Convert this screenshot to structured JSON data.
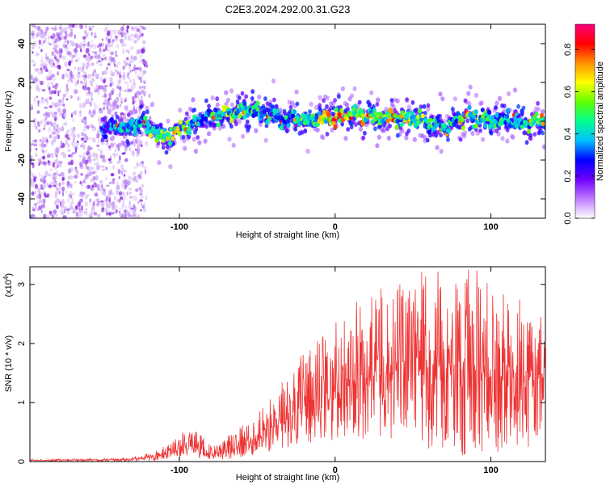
{
  "title": "C2E3.2024.292.00.31.G23",
  "chart_data": [
    {
      "type": "heatmap",
      "title": "C2E3.2024.292.00.31.G23",
      "xlabel": "Height of straight line (km)",
      "ylabel": "Frequency (Hz)",
      "xlim": [
        -196,
        135
      ],
      "ylim": [
        -50,
        50
      ],
      "xticks": [
        -100,
        0,
        100
      ],
      "yticks": [
        -40,
        -20,
        0,
        20,
        40
      ],
      "colorbar": {
        "label": "Normalized spectral amplitude",
        "range": [
          0.0,
          0.92
        ],
        "ticks": [
          0.0,
          0.2,
          0.4,
          0.6,
          0.8
        ],
        "colormap": [
          "#ffffff",
          "#c07bff",
          "#7000ff",
          "#0000ff",
          "#00c0ff",
          "#00ff90",
          "#60ff00",
          "#ffff00",
          "#ff9000",
          "#ff0000",
          "#ff0080"
        ]
      },
      "ridge": {
        "x": [
          -196,
          -185,
          -175,
          -165,
          -155,
          -145,
          -135,
          -125,
          -115,
          -108,
          -100,
          -92,
          -85,
          -78,
          -70,
          -62,
          -55,
          -48,
          -40,
          -32,
          -25,
          -18,
          -10,
          -2,
          5,
          12,
          20,
          28,
          35,
          42,
          50,
          58,
          65,
          70,
          78,
          85,
          92,
          100,
          108,
          115,
          122,
          128,
          135
        ],
        "freq": [
          -2,
          -6,
          -10,
          -4,
          -5,
          -3,
          -4,
          0,
          -6,
          -8,
          -4,
          -2,
          2,
          3,
          4,
          5,
          6,
          4,
          3,
          1,
          2,
          0,
          1,
          2,
          3,
          4,
          2,
          3,
          2,
          1,
          2,
          0,
          -2,
          -4,
          0,
          2,
          1,
          0,
          1,
          0,
          -1,
          0,
          0
        ],
        "amplitude": [
          0.15,
          0.15,
          0.2,
          0.2,
          0.25,
          0.3,
          0.35,
          0.4,
          0.5,
          0.55,
          0.5,
          0.45,
          0.35,
          0.4,
          0.5,
          0.45,
          0.4,
          0.4,
          0.35,
          0.35,
          0.4,
          0.45,
          0.5,
          0.6,
          0.65,
          0.6,
          0.55,
          0.5,
          0.55,
          0.45,
          0.5,
          0.45,
          0.4,
          0.35,
          0.4,
          0.5,
          0.45,
          0.4,
          0.35,
          0.3,
          0.4,
          0.5,
          0.45
        ]
      },
      "noise_region_x": [
        -196,
        -122
      ]
    },
    {
      "type": "line",
      "xlabel": "Height of straight line (km)",
      "ylabel": "SNR (10 * v/v)",
      "scale_note": "(x10",
      "scale_exp": "4",
      "scale_close": ")",
      "xlim": [
        -196,
        135
      ],
      "ylim": [
        0,
        3.3
      ],
      "xticks": [
        -100,
        0,
        100
      ],
      "yticks": [
        0,
        1,
        2,
        3
      ],
      "color": "#ee3333",
      "envelope": {
        "x": [
          -196,
          -140,
          -125,
          -110,
          -100,
          -95,
          -88,
          -80,
          -75,
          -65,
          -55,
          -45,
          -35,
          -25,
          -15,
          -5,
          5,
          15,
          25,
          35,
          45,
          55,
          65,
          75,
          85,
          95,
          105,
          115,
          125,
          135
        ],
        "mean": [
          0.02,
          0.03,
          0.05,
          0.12,
          0.2,
          0.28,
          0.25,
          0.12,
          0.15,
          0.22,
          0.35,
          0.5,
          0.65,
          0.8,
          1.0,
          1.15,
          1.3,
          1.4,
          1.45,
          1.5,
          1.5,
          1.55,
          1.55,
          1.6,
          1.55,
          1.5,
          1.45,
          1.4,
          1.35,
          1.45
        ],
        "max": [
          0.04,
          0.06,
          0.1,
          0.25,
          0.45,
          0.62,
          0.5,
          0.3,
          0.35,
          0.5,
          0.75,
          1.05,
          1.4,
          1.7,
          2.0,
          2.2,
          2.55,
          2.75,
          2.9,
          3.0,
          3.1,
          3.25,
          3.3,
          3.15,
          3.3,
          3.2,
          3.0,
          2.9,
          2.6,
          2.5
        ],
        "min": [
          0.0,
          0.0,
          0.0,
          0.02,
          0.05,
          0.08,
          0.06,
          0.02,
          0.03,
          0.05,
          0.1,
          0.15,
          0.2,
          0.25,
          0.3,
          0.35,
          0.4,
          0.4,
          0.35,
          0.3,
          0.25,
          0.2,
          0.15,
          0.1,
          0.1,
          0.1,
          0.15,
          0.15,
          0.2,
          0.3
        ]
      }
    }
  ]
}
